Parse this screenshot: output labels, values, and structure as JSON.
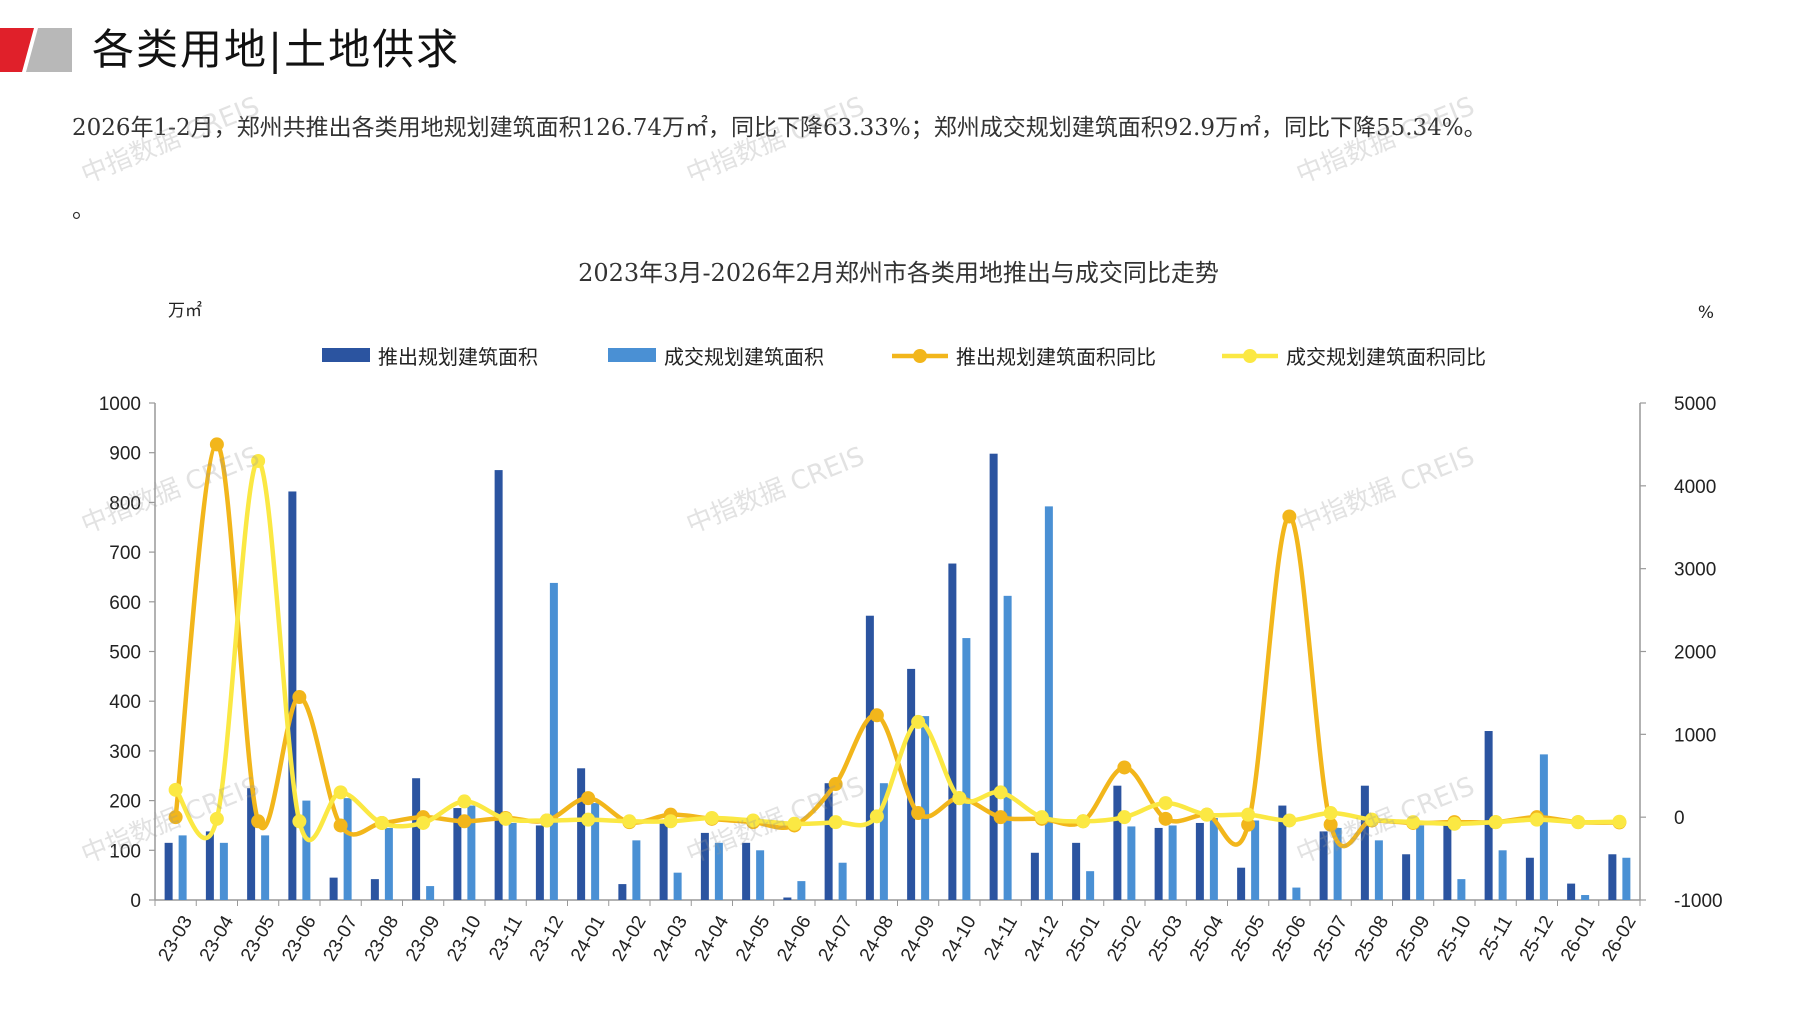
{
  "header": {
    "title": "各类用地|土地供求"
  },
  "summary": {
    "text": "2026年1-2月，郑州共推出各类用地规划建筑面积126.74万㎡，同比下降63.33%；郑州成交规划建筑面积92.9万㎡，同比下降55.34%。",
    "tail": "。"
  },
  "watermark": "中指数据 CREIS",
  "colors": {
    "supply_bar": "#2B54A0",
    "deal_bar": "#4A90D4",
    "supply_yoy": "#F2B61B",
    "deal_yoy": "#FBE843",
    "logo_red": "#E0202A",
    "logo_gray": "#B8B8B8"
  },
  "chart_data": {
    "type": "bar",
    "title": "2023年3月-2026年2月郑州市各类用地推出与成交同比走势",
    "y_left_unit": "万㎡",
    "y_right_unit": "%",
    "ylim_left": [
      0,
      1000
    ],
    "ylim_right": [
      -1000,
      5000
    ],
    "y_left_ticks": [
      0,
      100,
      200,
      300,
      400,
      500,
      600,
      700,
      800,
      900,
      1000
    ],
    "y_right_ticks": [
      -1000,
      0,
      1000,
      2000,
      3000,
      4000,
      5000
    ],
    "legend_position": "top",
    "grid": false,
    "categories": [
      "23-03",
      "23-04",
      "23-05",
      "23-06",
      "23-07",
      "23-08",
      "23-09",
      "23-10",
      "23-11",
      "23-12",
      "24-01",
      "24-02",
      "24-03",
      "24-04",
      "24-05",
      "24-06",
      "24-07",
      "24-08",
      "24-09",
      "24-10",
      "24-11",
      "24-12",
      "25-01",
      "25-02",
      "25-03",
      "25-04",
      "25-05",
      "25-06",
      "25-07",
      "25-08",
      "25-09",
      "25-10",
      "25-11",
      "25-12",
      "26-01",
      "26-02"
    ],
    "series": [
      {
        "name": "推出规划建筑面积",
        "type": "bar",
        "axis": "left",
        "values": [
          115,
          138,
          225,
          822,
          45,
          42,
          245,
          185,
          865,
          150,
          265,
          32,
          155,
          135,
          115,
          5,
          235,
          572,
          465,
          677,
          898,
          95,
          115,
          230,
          145,
          155,
          65,
          190,
          138,
          230,
          92,
          160,
          340,
          85,
          33,
          92
        ]
      },
      {
        "name": "成交规划建筑面积",
        "type": "bar",
        "axis": "left",
        "values": [
          130,
          115,
          130,
          200,
          205,
          145,
          28,
          190,
          155,
          638,
          195,
          120,
          55,
          115,
          100,
          38,
          75,
          235,
          370,
          527,
          612,
          792,
          58,
          148,
          150,
          165,
          160,
          25,
          145,
          120,
          150,
          42,
          100,
          293,
          10,
          85
        ]
      },
      {
        "name": "推出规划建筑面积同比",
        "type": "line",
        "axis": "right",
        "values": [
          0,
          4500,
          -50,
          1450,
          -100,
          -70,
          0,
          -50,
          -10,
          -40,
          230,
          -60,
          30,
          -20,
          -60,
          -100,
          400,
          1230,
          50,
          230,
          0,
          -20,
          -50,
          600,
          -20,
          30,
          -90,
          3630,
          -90,
          -40,
          -70,
          -60,
          -60,
          0,
          -60,
          -63
        ]
      },
      {
        "name": "成交规划建筑面积同比",
        "type": "line",
        "axis": "right",
        "values": [
          330,
          -20,
          4300,
          -50,
          300,
          -70,
          -70,
          190,
          -20,
          -40,
          -30,
          -50,
          -50,
          -10,
          -40,
          -80,
          -60,
          10,
          1150,
          230,
          300,
          0,
          -50,
          0,
          170,
          30,
          30,
          -40,
          50,
          -30,
          -60,
          -80,
          -60,
          -30,
          -60,
          -55
        ]
      }
    ]
  }
}
